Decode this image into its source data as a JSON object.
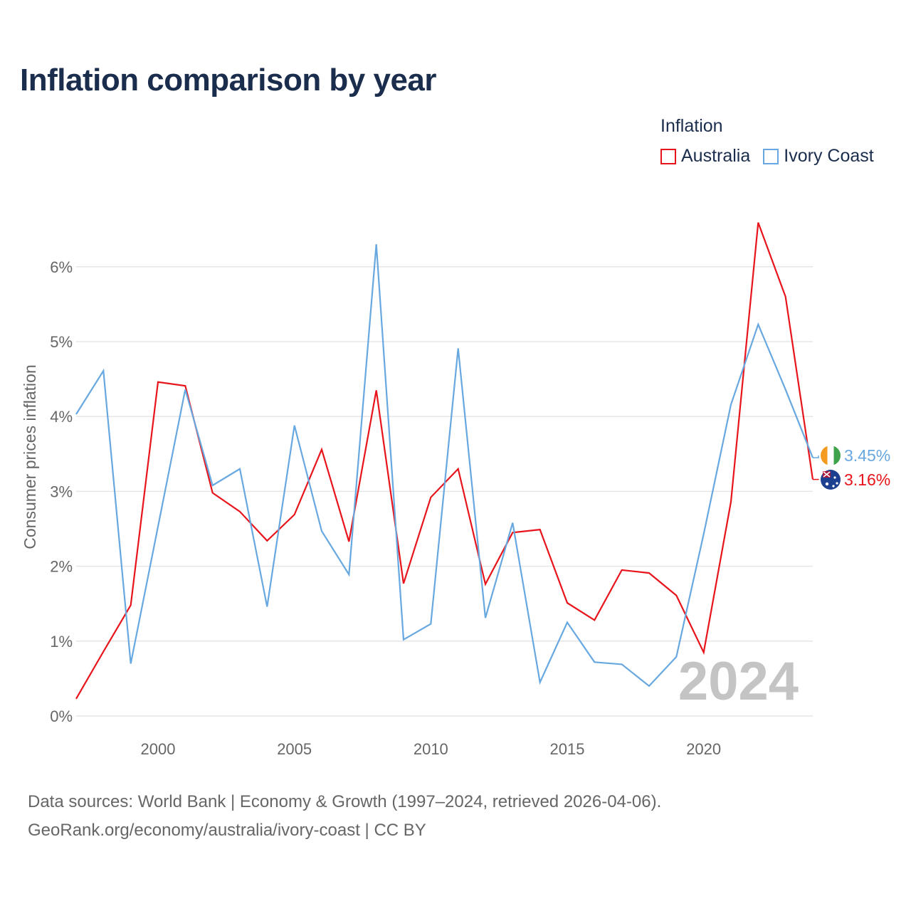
{
  "title": "Inflation comparison by year",
  "legend": {
    "title": "Inflation",
    "items": [
      {
        "name": "Australia",
        "color": "#e8141b"
      },
      {
        "name": "Ivory Coast",
        "color": "#68a8e0"
      }
    ]
  },
  "footer": {
    "line1": "Data sources: World Bank | Economy & Growth (1997–2024, retrieved 2026-04-06).",
    "line2": "GeoRank.org/economy/australia/ivory-coast | CC BY"
  },
  "chart_data": {
    "type": "line",
    "title": "Inflation comparison by year",
    "xlabel": "",
    "ylabel": "Consumer prices inflation",
    "x": [
      1997,
      1998,
      1999,
      2000,
      2001,
      2002,
      2003,
      2004,
      2005,
      2006,
      2007,
      2008,
      2009,
      2010,
      2011,
      2012,
      2013,
      2014,
      2015,
      2016,
      2017,
      2018,
      2019,
      2020,
      2021,
      2022,
      2023,
      2024
    ],
    "xlim": [
      1997,
      2024
    ],
    "ylim": [
      0,
      6.6
    ],
    "xticks": [
      2000,
      2005,
      2010,
      2015,
      2020
    ],
    "yticks": [
      0,
      1,
      2,
      3,
      4,
      5,
      6
    ],
    "ytick_labels": [
      "0%",
      "1%",
      "2%",
      "3%",
      "4%",
      "5%",
      "6%"
    ],
    "xtick_labels": [
      "2000",
      "2005",
      "2010",
      "2015",
      "2020"
    ],
    "watermark": "2024",
    "series": [
      {
        "name": "Australia",
        "color": "#e8141b",
        "end_label": "3.16%",
        "values": [
          0.23,
          0.86,
          1.48,
          4.46,
          4.41,
          2.98,
          2.73,
          2.34,
          2.69,
          3.56,
          2.33,
          4.35,
          1.77,
          2.92,
          3.3,
          1.76,
          2.45,
          2.49,
          1.51,
          1.28,
          1.95,
          1.91,
          1.61,
          0.85,
          2.86,
          6.59,
          5.6,
          3.16
        ]
      },
      {
        "name": "Ivory Coast",
        "color": "#68a8e0",
        "end_label": "3.45%",
        "values": [
          4.03,
          4.61,
          0.7,
          2.53,
          4.36,
          3.08,
          3.3,
          1.46,
          3.88,
          2.47,
          1.89,
          6.3,
          1.02,
          1.23,
          4.91,
          1.31,
          2.58,
          0.45,
          1.25,
          0.72,
          0.69,
          0.4,
          0.79,
          2.43,
          4.16,
          5.23,
          4.36,
          3.45
        ]
      }
    ]
  }
}
